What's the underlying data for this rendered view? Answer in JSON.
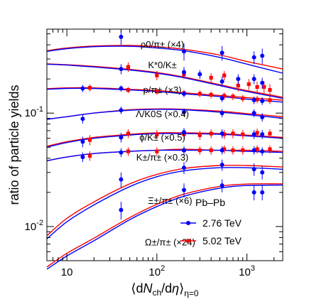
{
  "chart_data": {
    "type": "scatter",
    "title": "",
    "xlabel": "⟨dN_ch/dη⟩_η=0",
    "ylabel": "ratio of particle yields",
    "xscale": "log",
    "yscale": "log",
    "xlim": [
      6,
      2500
    ],
    "ylim": [
      0.005,
      0.55
    ],
    "grid": false,
    "legend_position": "bottom-right",
    "x_tick_labels": [
      {
        "value": 10,
        "label": "10"
      },
      {
        "value": 100,
        "label": "10^2"
      },
      {
        "value": 1000,
        "label": "10^3"
      }
    ],
    "y_tick_labels": [
      {
        "value": 0.01,
        "label": "10^-2"
      },
      {
        "value": 0.1,
        "label": "10^-1"
      }
    ],
    "system_label": "Pb–Pb",
    "series": [
      {
        "name": "2.76 TeV",
        "color": "#0000ff",
        "marker": "circle"
      },
      {
        "name": "5.02 TeV",
        "color": "#ff0000",
        "marker": "square"
      }
    ],
    "ratios": [
      {
        "label": "ρ0/π± (×4)",
        "label_at": [
          115,
          0.378
        ],
        "curve_276": [
          [
            6,
            0.35
          ],
          [
            10,
            0.37
          ],
          [
            20,
            0.385
          ],
          [
            50,
            0.388
          ],
          [
            100,
            0.375
          ],
          [
            200,
            0.355
          ],
          [
            500,
            0.31
          ],
          [
            1000,
            0.27
          ],
          [
            2500,
            0.225
          ]
        ],
        "curve_502": [
          [
            6,
            0.355
          ],
          [
            10,
            0.375
          ],
          [
            20,
            0.39
          ],
          [
            50,
            0.395
          ],
          [
            100,
            0.385
          ],
          [
            200,
            0.365
          ],
          [
            500,
            0.325
          ],
          [
            1000,
            0.285
          ],
          [
            2500,
            0.245
          ]
        ],
        "points_276": [
          [
            40,
            0.47,
            0.07
          ],
          [
            200,
            0.35,
            0.06
          ],
          [
            530,
            0.34,
            0.05
          ],
          [
            1200,
            0.31,
            0.04
          ],
          [
            1480,
            0.32,
            0.05
          ]
        ],
        "points_502": []
      },
      {
        "label": "K*0/K±",
        "label_at": [
          115,
          0.248
        ],
        "curve_276": [
          [
            6,
            0.27
          ],
          [
            10,
            0.265
          ],
          [
            20,
            0.255
          ],
          [
            50,
            0.24
          ],
          [
            100,
            0.225
          ],
          [
            200,
            0.205
          ],
          [
            500,
            0.175
          ],
          [
            1000,
            0.155
          ],
          [
            2500,
            0.135
          ]
        ],
        "curve_502": [
          [
            6,
            0.272
          ],
          [
            10,
            0.267
          ],
          [
            20,
            0.258
          ],
          [
            50,
            0.243
          ],
          [
            100,
            0.228
          ],
          [
            200,
            0.208
          ],
          [
            500,
            0.178
          ],
          [
            1000,
            0.158
          ],
          [
            2500,
            0.138
          ]
        ],
        "points_276": [
          [
            40,
            0.245,
            0.025
          ],
          [
            200,
            0.23,
            0.025
          ],
          [
            300,
            0.22,
            0.02
          ],
          [
            530,
            0.19,
            0.02
          ],
          [
            800,
            0.2,
            0.02
          ],
          [
            1200,
            0.2,
            0.02
          ],
          [
            1480,
            0.185,
            0.02
          ]
        ],
        "points_502": [
          [
            48,
            0.255,
            0.025
          ],
          [
            100,
            0.215,
            0.02
          ],
          [
            200,
            0.22,
            0.02
          ],
          [
            400,
            0.205,
            0.02
          ],
          [
            560,
            0.215,
            0.02
          ],
          [
            800,
            0.175,
            0.02
          ],
          [
            1050,
            0.18,
            0.02
          ],
          [
            1300,
            0.17,
            0.02
          ],
          [
            1550,
            0.17,
            0.02
          ],
          [
            1800,
            0.16,
            0.02
          ]
        ]
      },
      {
        "label": "p/π± (×3)",
        "label_at": [
          115,
          0.15
        ],
        "curve_276": [
          [
            6,
            0.162
          ],
          [
            10,
            0.165
          ],
          [
            20,
            0.165
          ],
          [
            50,
            0.16
          ],
          [
            100,
            0.155
          ],
          [
            200,
            0.148
          ],
          [
            500,
            0.14
          ],
          [
            1000,
            0.133
          ],
          [
            2500,
            0.125
          ]
        ],
        "curve_502": [
          [
            6,
            0.164
          ],
          [
            10,
            0.167
          ],
          [
            20,
            0.167
          ],
          [
            50,
            0.162
          ],
          [
            100,
            0.158
          ],
          [
            200,
            0.151
          ],
          [
            500,
            0.143
          ],
          [
            1000,
            0.137
          ],
          [
            2500,
            0.13
          ]
        ],
        "points_276": [
          [
            15,
            0.165,
            0.012
          ],
          [
            40,
            0.165,
            0.01
          ],
          [
            200,
            0.148,
            0.01
          ],
          [
            530,
            0.135,
            0.01
          ],
          [
            1200,
            0.13,
            0.01
          ],
          [
            1480,
            0.128,
            0.01
          ]
        ],
        "points_502": [
          [
            18,
            0.167,
            0.012
          ],
          [
            48,
            0.16,
            0.01
          ],
          [
            100,
            0.155,
            0.01
          ],
          [
            200,
            0.15,
            0.01
          ],
          [
            300,
            0.148,
            0.01
          ],
          [
            400,
            0.145,
            0.01
          ],
          [
            560,
            0.142,
            0.01
          ],
          [
            700,
            0.14,
            0.01
          ],
          [
            900,
            0.135,
            0.01
          ],
          [
            1300,
            0.132,
            0.01
          ],
          [
            1800,
            0.13,
            0.01
          ]
        ]
      },
      {
        "label": "Λ/K0S (×0.4)",
        "label_at": [
          115,
          0.092
        ],
        "curve_276": [
          [
            6,
            0.088
          ],
          [
            10,
            0.093
          ],
          [
            20,
            0.1
          ],
          [
            50,
            0.106
          ],
          [
            100,
            0.108
          ],
          [
            200,
            0.107
          ],
          [
            500,
            0.102
          ],
          [
            1000,
            0.097
          ],
          [
            2500,
            0.09
          ]
        ],
        "curve_502": [
          [
            6,
            0.088
          ],
          [
            10,
            0.093
          ],
          [
            20,
            0.1
          ],
          [
            50,
            0.107
          ],
          [
            100,
            0.109
          ],
          [
            200,
            0.108
          ],
          [
            500,
            0.104
          ],
          [
            1000,
            0.099
          ],
          [
            2500,
            0.093
          ]
        ],
        "points_276": [
          [
            15,
            0.089,
            0.008
          ],
          [
            40,
            0.106,
            0.008
          ],
          [
            200,
            0.102,
            0.008
          ],
          [
            530,
            0.1,
            0.008
          ],
          [
            1200,
            0.1,
            0.008
          ],
          [
            1480,
            0.092,
            0.008
          ]
        ],
        "points_502": []
      },
      {
        "label": "ϕ/K± (×0.5)",
        "label_at": [
          115,
          0.057
        ],
        "curve_276": [
          [
            6,
            0.05
          ],
          [
            10,
            0.055
          ],
          [
            20,
            0.06
          ],
          [
            50,
            0.064
          ],
          [
            100,
            0.066
          ],
          [
            200,
            0.066
          ],
          [
            500,
            0.065
          ],
          [
            1000,
            0.063
          ],
          [
            2500,
            0.06
          ]
        ],
        "curve_502": [
          [
            6,
            0.051
          ],
          [
            10,
            0.056
          ],
          [
            20,
            0.061
          ],
          [
            50,
            0.065
          ],
          [
            100,
            0.067
          ],
          [
            200,
            0.067
          ],
          [
            500,
            0.066
          ],
          [
            1000,
            0.064
          ],
          [
            2500,
            0.061
          ]
        ],
        "points_276": [
          [
            15,
            0.056,
            0.006
          ],
          [
            40,
            0.061,
            0.006
          ],
          [
            200,
            0.068,
            0.006
          ],
          [
            530,
            0.066,
            0.006
          ],
          [
            1200,
            0.065,
            0.006
          ],
          [
            1480,
            0.065,
            0.006
          ]
        ],
        "points_502": [
          [
            18,
            0.058,
            0.006
          ],
          [
            48,
            0.066,
            0.006
          ],
          [
            100,
            0.065,
            0.006
          ],
          [
            200,
            0.065,
            0.006
          ],
          [
            300,
            0.064,
            0.006
          ],
          [
            400,
            0.066,
            0.006
          ],
          [
            560,
            0.065,
            0.006
          ],
          [
            700,
            0.066,
            0.006
          ],
          [
            900,
            0.065,
            0.006
          ],
          [
            1300,
            0.067,
            0.006
          ],
          [
            1800,
            0.066,
            0.006
          ]
        ]
      },
      {
        "label": "K±/π± (×0.3)",
        "label_at": [
          115,
          0.0383
        ],
        "curve_276": [
          [
            6,
            0.038
          ],
          [
            10,
            0.041
          ],
          [
            20,
            0.044
          ],
          [
            50,
            0.046
          ],
          [
            100,
            0.047
          ],
          [
            200,
            0.047
          ],
          [
            500,
            0.047
          ],
          [
            1000,
            0.046
          ],
          [
            2500,
            0.045
          ]
        ],
        "curve_502": [
          [
            6,
            0.038
          ],
          [
            10,
            0.041
          ],
          [
            20,
            0.044
          ],
          [
            50,
            0.046
          ],
          [
            100,
            0.047
          ],
          [
            200,
            0.048
          ],
          [
            500,
            0.047
          ],
          [
            1000,
            0.047
          ],
          [
            2500,
            0.046
          ]
        ],
        "points_276": [
          [
            15,
            0.041,
            0.004
          ],
          [
            40,
            0.045,
            0.004
          ],
          [
            200,
            0.047,
            0.004
          ],
          [
            530,
            0.047,
            0.004
          ],
          [
            1200,
            0.047,
            0.004
          ],
          [
            1480,
            0.046,
            0.004
          ]
        ],
        "points_502": [
          [
            18,
            0.042,
            0.004
          ],
          [
            48,
            0.046,
            0.004
          ],
          [
            100,
            0.046,
            0.004
          ],
          [
            200,
            0.047,
            0.004
          ],
          [
            300,
            0.047,
            0.004
          ],
          [
            400,
            0.047,
            0.004
          ],
          [
            560,
            0.048,
            0.004
          ],
          [
            700,
            0.047,
            0.004
          ],
          [
            900,
            0.047,
            0.004
          ],
          [
            1300,
            0.048,
            0.004
          ],
          [
            1800,
            0.048,
            0.004
          ]
        ]
      },
      {
        "label": "Ξ±/π± (×6)",
        "label_at": [
          140,
          0.0158
        ],
        "curve_276": [
          [
            6,
            0.0078
          ],
          [
            10,
            0.011
          ],
          [
            20,
            0.0155
          ],
          [
            50,
            0.0225
          ],
          [
            100,
            0.0275
          ],
          [
            200,
            0.031
          ],
          [
            500,
            0.033
          ],
          [
            1000,
            0.033
          ],
          [
            2500,
            0.032
          ]
        ],
        "curve_502": [
          [
            6,
            0.0083
          ],
          [
            10,
            0.0118
          ],
          [
            20,
            0.0165
          ],
          [
            50,
            0.0238
          ],
          [
            100,
            0.0288
          ],
          [
            200,
            0.0325
          ],
          [
            500,
            0.0345
          ],
          [
            1000,
            0.0345
          ],
          [
            2500,
            0.0335
          ]
        ],
        "points_276": [
          [
            40,
            0.026,
            0.004
          ],
          [
            200,
            0.033,
            0.004
          ],
          [
            530,
            0.035,
            0.004
          ],
          [
            1200,
            0.032,
            0.004
          ],
          [
            1480,
            0.03,
            0.004
          ]
        ],
        "points_502": []
      },
      {
        "label": "Ω±/π± (×24)",
        "label_at": [
          140,
          0.0068
        ],
        "curve_276": [
          [
            6,
            0.0042
          ],
          [
            10,
            0.0055
          ],
          [
            20,
            0.0075
          ],
          [
            50,
            0.0115
          ],
          [
            100,
            0.015
          ],
          [
            200,
            0.0185
          ],
          [
            500,
            0.0218
          ],
          [
            1000,
            0.023
          ],
          [
            2500,
            0.0232
          ]
        ],
        "curve_502": [
          [
            6,
            0.0044
          ],
          [
            10,
            0.0058
          ],
          [
            20,
            0.0079
          ],
          [
            50,
            0.012
          ],
          [
            100,
            0.0157
          ],
          [
            200,
            0.0193
          ],
          [
            500,
            0.0226
          ],
          [
            1000,
            0.0237
          ],
          [
            2500,
            0.0238
          ]
        ],
        "points_276": [
          [
            40,
            0.014,
            0.0025
          ],
          [
            200,
            0.021,
            0.003
          ],
          [
            530,
            0.023,
            0.003
          ],
          [
            1200,
            0.02,
            0.003
          ],
          [
            1480,
            0.02,
            0.003
          ]
        ],
        "points_502": []
      }
    ]
  }
}
